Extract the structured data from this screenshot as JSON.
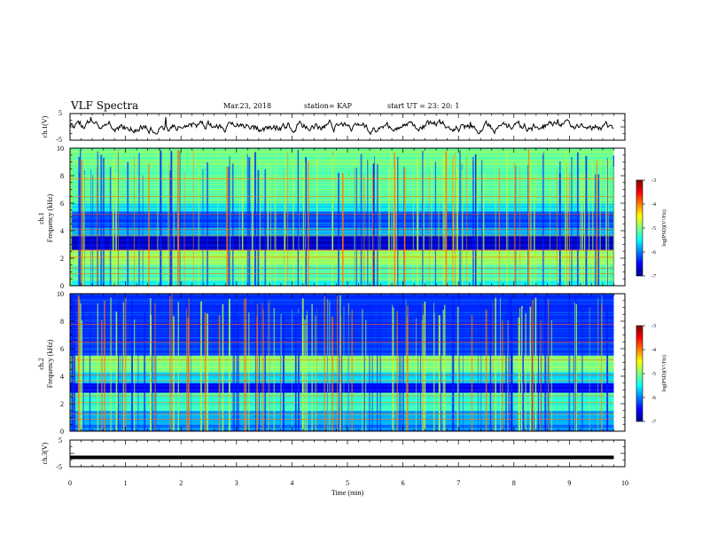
{
  "header": {
    "title": "VLF Spectra",
    "date": "Mar.23, 2018",
    "station": "station= KAP",
    "start_ut": "start  UT  =   23: 20: 1"
  },
  "chart_data": [
    {
      "type": "line",
      "panel": "ch1-waveform",
      "ylabel": "ch.1(V)",
      "xlim": [
        0,
        10
      ],
      "ylim": [
        -5,
        5
      ],
      "yticks": [
        "5",
        "-5"
      ],
      "data_extent_min": 9.8,
      "series": [
        {
          "style": "noisy waveform around 0 V, amplitude ~2 V",
          "color": "#000000"
        }
      ]
    },
    {
      "type": "heatmap",
      "panel": "ch1-spectrogram",
      "ylabel": "ch.1\nFrequency (kHz)",
      "xlim": [
        0,
        10
      ],
      "ylim": [
        0,
        10
      ],
      "yticks": [
        "0",
        "2",
        "4",
        "6",
        "8",
        "10"
      ],
      "colorbar": {
        "label": "log(PSD)(V²/Hz)",
        "range": [
          -7,
          -3
        ],
        "ticks": [
          "-3",
          "-4",
          "-5",
          "-6",
          "-7"
        ]
      },
      "bands_khz": [
        {
          "f": [
            0.0,
            0.3
          ],
          "level": -5.5
        },
        {
          "f": [
            0.3,
            1.5
          ],
          "level": -5.2
        },
        {
          "f": [
            1.5,
            2.6
          ],
          "level": -4.9
        },
        {
          "f": [
            2.6,
            3.6
          ],
          "level": -6.7
        },
        {
          "f": [
            3.6,
            4.2
          ],
          "level": -5.8
        },
        {
          "f": [
            4.2,
            5.4
          ],
          "level": -6.2
        },
        {
          "f": [
            5.4,
            6.0
          ],
          "level": -5.6
        },
        {
          "f": [
            6.0,
            10.0
          ],
          "level": -5.1
        }
      ]
    },
    {
      "type": "heatmap",
      "panel": "ch2-spectrogram",
      "ylabel": "ch.2\nFrequency (kHz)",
      "xlim": [
        0,
        10
      ],
      "ylim": [
        0,
        10
      ],
      "yticks": [
        "0",
        "2",
        "4",
        "6",
        "8",
        "10"
      ],
      "colorbar": {
        "label": "log(PSD)(V²/Hz)",
        "range": [
          -7,
          -3
        ],
        "ticks": [
          "-3",
          "-4",
          "-5",
          "-6",
          "-7"
        ]
      },
      "bands_khz": [
        {
          "f": [
            0.0,
            0.5
          ],
          "level": -6.0
        },
        {
          "f": [
            0.5,
            1.5
          ],
          "level": -5.8
        },
        {
          "f": [
            1.5,
            2.8
          ],
          "level": -5.3
        },
        {
          "f": [
            2.8,
            3.5
          ],
          "level": -6.5
        },
        {
          "f": [
            3.5,
            4.3
          ],
          "level": -5.6
        },
        {
          "f": [
            4.3,
            5.5
          ],
          "level": -5.0
        },
        {
          "f": [
            5.5,
            10.0
          ],
          "level": -6.3
        }
      ]
    },
    {
      "type": "line",
      "panel": "ch3-waveform",
      "ylabel": "ch.3(V)",
      "xlabel": "Time  (min)",
      "xlim": [
        0,
        10
      ],
      "ylim": [
        -5,
        5
      ],
      "yticks": [
        "5",
        "-5"
      ],
      "xticks": [
        "0",
        "1",
        "2",
        "3",
        "4",
        "5",
        "6",
        "7",
        "8",
        "9",
        "10"
      ],
      "data_extent_min": 9.8,
      "series": [
        {
          "style": "constant near -1.5 V",
          "y": -1.5,
          "color": "#000000"
        }
      ]
    }
  ]
}
